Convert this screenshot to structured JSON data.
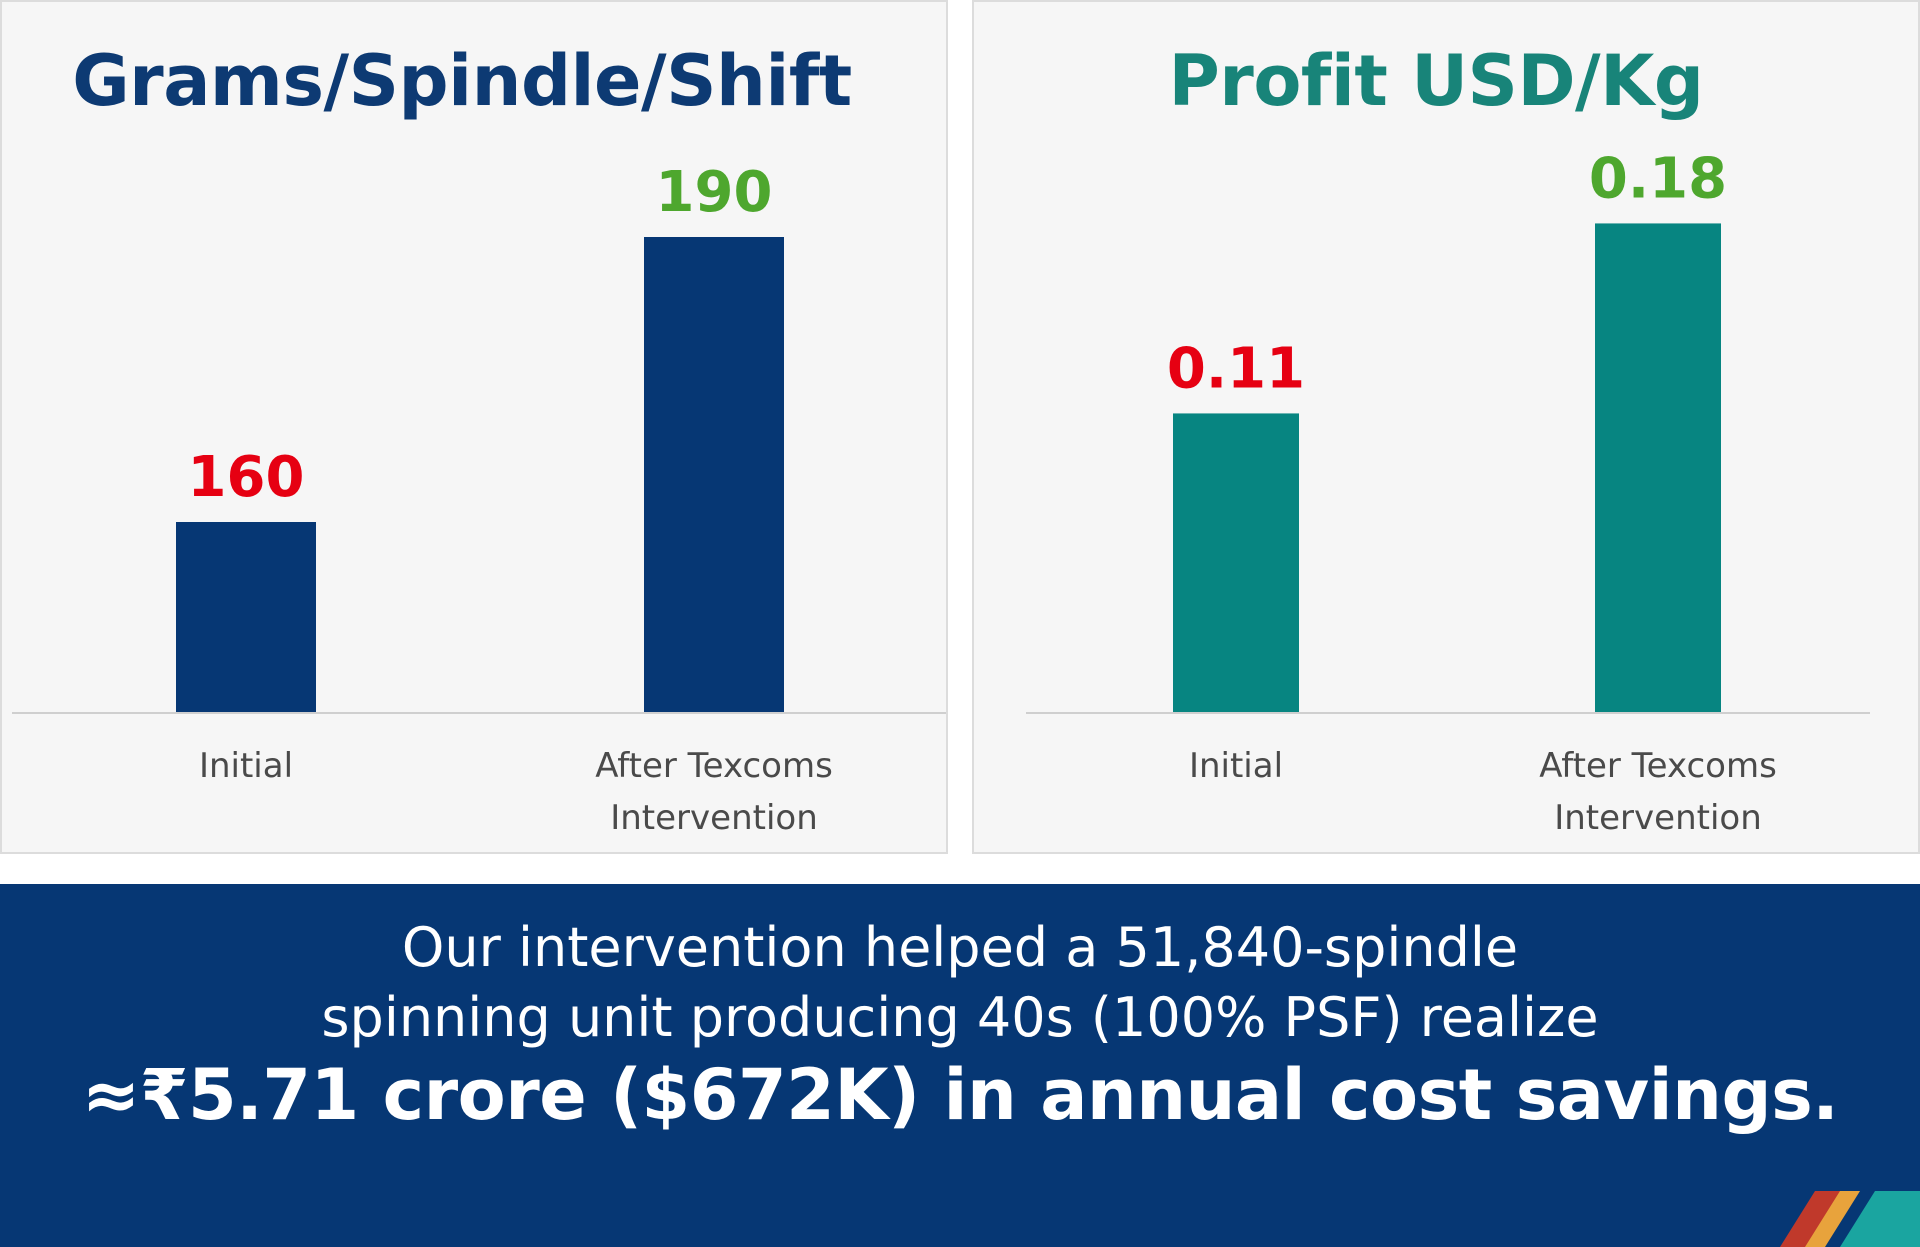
{
  "chart_data": [
    {
      "type": "bar",
      "title": "Grams/Spindle/Shift",
      "categories": [
        "Initial",
        "After Texcoms Intervention"
      ],
      "category_lines": [
        [
          "Initial"
        ],
        [
          "After Texcoms",
          "Intervention"
        ]
      ],
      "values": [
        160,
        190
      ],
      "data_labels": [
        "160",
        "190"
      ],
      "ylim": [
        140,
        200
      ],
      "bar_color": "#063774",
      "title_color": "#0d3a73",
      "label_colors": [
        "#e60012",
        "#4ea72e"
      ],
      "grid": false,
      "legend": "none"
    },
    {
      "type": "bar",
      "title": "Profit USD/Kg",
      "categories": [
        "Initial",
        "After Texcoms Intervention"
      ],
      "category_lines": [
        [
          "Initial"
        ],
        [
          "After Texcoms",
          "Intervention"
        ]
      ],
      "values": [
        0.11,
        0.18
      ],
      "data_labels": [
        "0.11",
        "0.18"
      ],
      "ylim": [
        0,
        0.21
      ],
      "bar_color": "#078581",
      "title_color": "#188479",
      "label_colors": [
        "#e60012",
        "#4ea72e"
      ],
      "grid": false,
      "legend": "none"
    }
  ],
  "banner": {
    "line1": "Our intervention helped a 51,840-spindle",
    "line2": "spinning unit producing 40s (100% PSF) realize",
    "line3": "≈₹5.71 crore ($672K) in annual cost savings.",
    "background_color": "#063774"
  }
}
